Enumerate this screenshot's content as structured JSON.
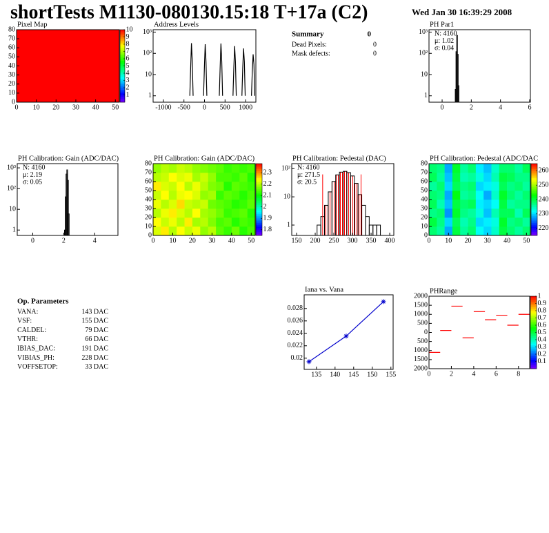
{
  "header": {
    "title": "shortTests M1130-080130.15:18 T+17a (C2)",
    "date": "Wed Jan 30 16:39:29 2008"
  },
  "summary": {
    "title": "Summary",
    "value": "0",
    "rows": [
      [
        "Dead Pixels:",
        "0"
      ],
      [
        "Mask defects:",
        "0"
      ]
    ]
  },
  "parameters": {
    "title": "Op. Parameters",
    "rows": [
      [
        "VANA:",
        "143 DAC"
      ],
      [
        "VSF:",
        "155 DAC"
      ],
      [
        "CALDEL:",
        "79 DAC"
      ],
      [
        "VTHR:",
        "66 DAC"
      ],
      [
        "IBIAS_DAC:",
        "191 DAC"
      ],
      [
        "VIBIAS_PH:",
        "228 DAC"
      ],
      [
        "VOFFSETOP:",
        "33 DAC"
      ]
    ]
  },
  "chart_data": [
    {
      "type": "heatmap",
      "title": "Pixel Map",
      "xlim": [
        0,
        52
      ],
      "xticks": [
        0,
        10,
        20,
        30,
        40,
        50
      ],
      "ylim": [
        0,
        80
      ],
      "yticks": [
        0,
        10,
        20,
        30,
        40,
        50,
        60,
        70,
        80
      ],
      "zlim": [
        0,
        10
      ],
      "zticks": [
        1,
        2,
        3,
        4,
        5,
        6,
        7,
        8,
        9,
        10
      ],
      "z": [
        [
          10,
          10
        ],
        [
          10,
          10
        ]
      ]
    },
    {
      "type": "line",
      "title": "Address Levels",
      "logy": true,
      "color": "#000000",
      "xlim": [
        -1250,
        1250
      ],
      "xticks": [
        -1000,
        -500,
        0,
        500,
        1000
      ],
      "ylim": [
        0.5,
        1300
      ],
      "yticks": [
        1,
        10,
        {
          "value": 100,
          "label": "10²"
        },
        {
          "value": 1000,
          "label": "10³"
        }
      ],
      "x": [
        -357,
        -337,
        -317,
        -297,
        -277,
        null,
        -23,
        -3,
        17,
        37,
        57,
        null,
        360,
        380,
        400,
        420,
        440,
        null,
        693,
        713,
        733,
        753,
        773,
        null,
        910,
        930,
        950,
        970,
        990,
        null,
        1143,
        1163,
        1183,
        1203,
        1223
      ],
      "values": [
        1,
        20,
        300,
        40,
        1,
        null,
        1,
        20,
        270,
        40,
        1,
        null,
        1,
        20,
        290,
        40,
        1,
        null,
        1,
        20,
        220,
        40,
        1,
        null,
        1,
        20,
        170,
        40,
        1,
        null,
        1,
        15,
        90,
        30,
        1
      ]
    },
    {
      "type": "histogram",
      "title": "PH Par1",
      "logy": true,
      "xlim": [
        -0.9,
        6.05
      ],
      "xticks": [
        0,
        2,
        4,
        6
      ],
      "ylim": [
        0.5,
        1300
      ],
      "yticks": [
        1,
        10,
        {
          "value": 100,
          "label": "10²"
        },
        {
          "value": 1000,
          "label": "10³"
        }
      ],
      "bins": [
        0.9,
        0.95,
        1.0,
        1.05,
        1.1,
        1.15
      ],
      "values": [
        2,
        120,
        700,
        90,
        3
      ],
      "stats": [
        {
          "text": "N: 4160",
          "color": "#000000"
        },
        {
          "text": "μ: 1.02",
          "color": "#000000"
        },
        {
          "text": "σ: 0.04",
          "color": "#000000"
        }
      ]
    },
    {
      "type": "histogram",
      "title": "PH Calibration: Gain (ADC/DAC)",
      "logy": true,
      "xlim": [
        -1,
        5.5
      ],
      "xticks": [
        0,
        2,
        4
      ],
      "ylim": [
        0.55,
        1600
      ],
      "yticks": [
        1,
        10,
        {
          "value": 100,
          "label": "10²"
        },
        {
          "value": 1000,
          "label": "10³"
        }
      ],
      "bins": [
        2.05,
        2.1,
        2.15,
        2.2,
        2.25,
        2.3,
        2.35
      ],
      "values": [
        1,
        40,
        500,
        800,
        250,
        6
      ],
      "stats": [
        {
          "text": "N: 4160",
          "color": "#000000"
        },
        {
          "text": "μ: 2.19",
          "color": "#000000"
        },
        {
          "text": "σ: 0.05",
          "color": "#000000"
        }
      ]
    },
    {
      "type": "heatmap",
      "title": "PH Calibration: Gain (ADC/DAC)",
      "xlim": [
        0,
        52
      ],
      "xticks": [
        0,
        10,
        20,
        30,
        40,
        50
      ],
      "ylim": [
        0,
        80
      ],
      "yticks": [
        0,
        10,
        20,
        30,
        40,
        50,
        60,
        70,
        80
      ],
      "zlim": [
        1.75,
        2.38
      ],
      "zticks": [
        1.8,
        1.9,
        2,
        2.1,
        2.2,
        2.3
      ],
      "z": [
        [
          2.22,
          2.25,
          2.2,
          2.24,
          2.21,
          2.23,
          2.18,
          2.2,
          2.15,
          2.13,
          2.16,
          2.12,
          2.14
        ],
        [
          2.24,
          2.21,
          2.23,
          2.2,
          2.25,
          2.19,
          2.2,
          2.17,
          2.14,
          2.15,
          2.12,
          2.14,
          2.13
        ],
        [
          2.2,
          2.23,
          2.25,
          2.22,
          2.2,
          2.24,
          2.19,
          2.18,
          2.16,
          2.13,
          2.14,
          2.15,
          2.12
        ],
        [
          2.23,
          2.2,
          2.22,
          2.26,
          2.21,
          2.2,
          2.21,
          2.16,
          2.15,
          2.14,
          2.12,
          2.13,
          2.15
        ],
        [
          2.21,
          2.24,
          2.2,
          2.23,
          2.24,
          2.22,
          2.18,
          2.19,
          2.13,
          2.15,
          2.14,
          2.12,
          2.14
        ],
        [
          2.25,
          2.22,
          2.21,
          2.24,
          2.2,
          2.23,
          2.2,
          2.17,
          2.16,
          2.12,
          2.15,
          2.14,
          2.13
        ],
        [
          2.2,
          2.21,
          2.24,
          2.22,
          2.23,
          2.19,
          2.21,
          2.18,
          2.14,
          2.14,
          2.13,
          2.15,
          2.12
        ],
        [
          2.18,
          2.2,
          2.19,
          2.21,
          2.2,
          2.18,
          2.17,
          2.16,
          2.15,
          2.13,
          2.14,
          2.13,
          2.14
        ]
      ]
    },
    {
      "type": "histogram",
      "title": "PH Calibration: Pedestal (DAC)",
      "logy": true,
      "xlim": [
        137,
        411
      ],
      "xticks": [
        150,
        200,
        250,
        300,
        350,
        400
      ],
      "ylim": [
        0.43,
        150
      ],
      "yticks": [
        1,
        10,
        {
          "value": 100,
          "label": "10²"
        }
      ],
      "bins": [
        205,
        215,
        225,
        235,
        245,
        255,
        265,
        275,
        285,
        295,
        305,
        315,
        325,
        335,
        345,
        355,
        365,
        375
      ],
      "values": [
        1,
        2,
        5,
        15,
        35,
        60,
        75,
        80,
        72,
        55,
        30,
        12,
        5,
        2,
        1,
        1,
        1
      ],
      "markers": [
        220,
        323
      ],
      "marker_color": "#ff0000",
      "stats": [
        {
          "text": "N: 4160",
          "color": "#000000"
        },
        {
          "text": "μ: 271.5",
          "color": "#ff0000"
        },
        {
          "text": "σ: 20.5",
          "color": "#ff0000"
        }
      ]
    },
    {
      "type": "heatmap",
      "title": "PH Calibration: Pedestal (ADC/DAC",
      "xlim": [
        0,
        52
      ],
      "xticks": [
        0,
        10,
        20,
        30,
        40,
        50
      ],
      "ylim": [
        0,
        80
      ],
      "yticks": [
        0,
        10,
        20,
        30,
        40,
        50,
        60,
        70,
        80
      ],
      "zlim": [
        215,
        265
      ],
      "zticks": [
        220,
        230,
        240,
        250,
        260
      ],
      "z": [
        [
          238,
          236,
          228,
          240,
          236,
          238,
          232,
          230,
          234,
          240,
          238,
          236,
          238
        ],
        [
          240,
          237,
          230,
          239,
          235,
          237,
          230,
          231,
          233,
          241,
          237,
          238,
          236
        ],
        [
          237,
          238,
          227,
          241,
          237,
          236,
          233,
          229,
          235,
          239,
          239,
          235,
          239
        ],
        [
          239,
          235,
          229,
          240,
          238,
          239,
          231,
          230,
          232,
          240,
          236,
          237,
          237
        ],
        [
          238,
          237,
          228,
          242,
          236,
          237,
          232,
          228,
          234,
          241,
          238,
          236,
          238
        ],
        [
          236,
          238,
          230,
          239,
          237,
          238,
          230,
          231,
          233,
          239,
          237,
          238,
          236
        ],
        [
          239,
          236,
          229,
          240,
          235,
          236,
          233,
          230,
          235,
          240,
          239,
          237,
          237
        ],
        [
          238,
          237,
          228,
          241,
          236,
          238,
          231,
          229,
          234,
          238,
          238,
          236,
          239
        ]
      ]
    },
    {
      "type": "line",
      "title": "Iana vs. Vana",
      "color": "#0000cc",
      "point_marker": "star",
      "xlim": [
        131.7,
        155.6
      ],
      "xticks": [
        135,
        140,
        145,
        150,
        155
      ],
      "ylim": [
        0.0182,
        0.0302
      ],
      "yticks": [
        0.02,
        0.022,
        0.024,
        0.026,
        0.028
      ],
      "x": [
        133,
        143,
        153
      ],
      "values": [
        0.01944,
        0.02356,
        0.0291
      ]
    },
    {
      "type": "histogram",
      "style": "lines",
      "color": "#ff0000",
      "title": "PHRange",
      "xlim": [
        0,
        9
      ],
      "xticks": [
        0,
        2,
        4,
        6,
        8
      ],
      "ylim": [
        -2000,
        2000
      ],
      "yticks": [
        {
          "value": -2000,
          "label": "2000"
        },
        {
          "value": -1500,
          "label": "1500"
        },
        {
          "value": -1000,
          "label": "1000"
        },
        {
          "value": -500,
          "label": "500"
        },
        0,
        500,
        1000,
        1500,
        2000
      ],
      "zlim": [
        0,
        1
      ],
      "zticks": [
        0.1,
        0.2,
        0.3,
        0.4,
        0.5,
        0.6,
        0.7,
        0.8,
        0.9,
        1
      ],
      "bins": [
        0,
        1,
        2,
        3,
        4,
        5,
        6,
        7,
        8,
        9
      ],
      "values": [
        -1100,
        110,
        1450,
        -300,
        1150,
        700,
        950,
        400,
        1000
      ]
    }
  ]
}
